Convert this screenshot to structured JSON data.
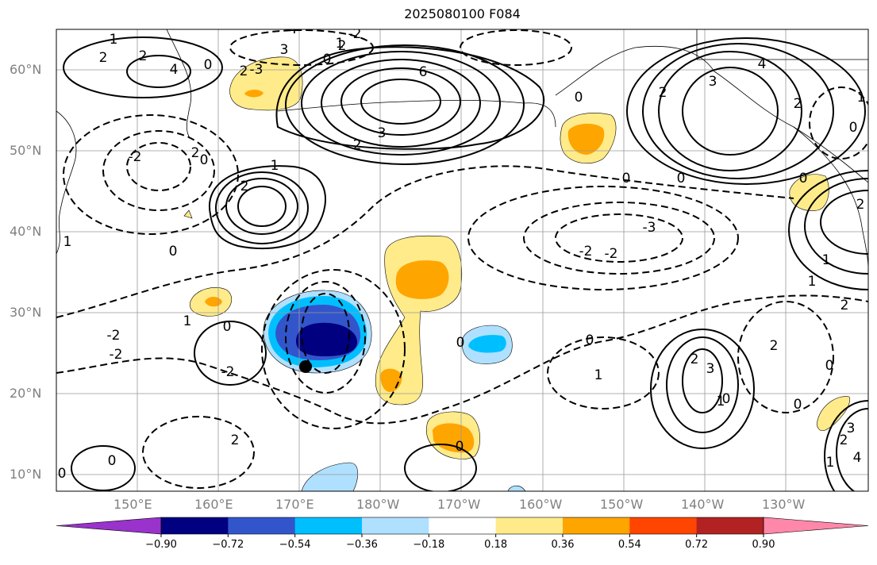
{
  "title": "2025080100 F084",
  "lat_labels": [
    "60°N",
    "50°N",
    "40°N",
    "30°N",
    "20°N",
    "10°N"
  ],
  "lon_labels": [
    "150°E",
    "160°E",
    "170°E",
    "180°W",
    "170°W",
    "160°W",
    "150°W",
    "140°W",
    "130°W"
  ],
  "colorbar": {
    "colors": [
      "#9933cc",
      "#000080",
      "#3355cc",
      "#00bfff",
      "#b0e0ff",
      "#ffffff",
      "#ffeb8a",
      "#ffa500",
      "#ff4500",
      "#b22222",
      "#ff88aa"
    ],
    "tick_labels": [
      "−0.90",
      "−0.72",
      "−0.54",
      "−0.36",
      "−0.18",
      "0.18",
      "0.36",
      "0.54",
      "0.72",
      "0.90"
    ],
    "levels": [
      -0.9,
      -0.72,
      -0.54,
      -0.36,
      -0.18,
      0.18,
      0.36,
      0.54,
      0.72,
      0.9
    ]
  },
  "contour_labels": [
    "1",
    "2",
    "2",
    "4",
    "0",
    "4",
    "3",
    "2",
    "-2",
    "1",
    "0",
    "2",
    "6",
    "3",
    "2",
    "-3",
    "0",
    "2",
    "4",
    "3",
    "2",
    "1",
    "0",
    "-2",
    "2",
    "0",
    "1",
    "2",
    "0",
    "1",
    "-2",
    "0",
    "-2",
    "-2",
    "1",
    "0",
    "-2",
    "-3",
    "0",
    "0",
    "1",
    "2",
    "2",
    "1",
    "0",
    "1",
    "0",
    "0",
    "2",
    "3",
    "1",
    "0",
    "0",
    "2",
    "4",
    "3",
    "1",
    "0",
    "2",
    "2",
    "0",
    "0",
    "-2"
  ],
  "marker": "black-dot"
}
